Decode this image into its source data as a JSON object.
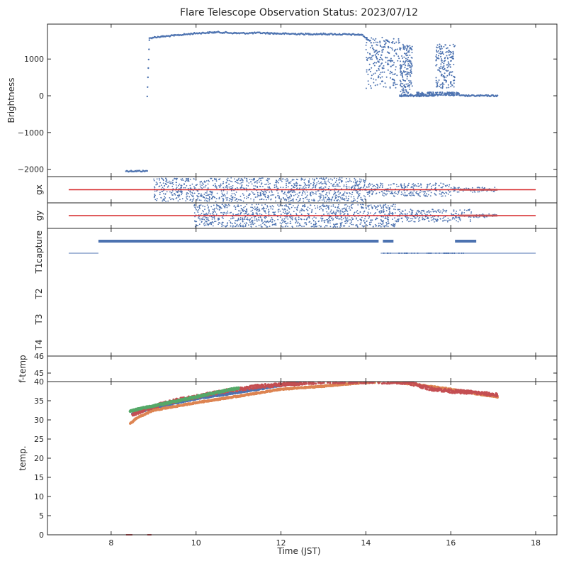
{
  "chart_data": {
    "type": "scatter",
    "title": "Flare Telescope Observation Status: 2023/07/12",
    "xlabel": "Time (JST)",
    "xlim": [
      6.5,
      18.5
    ],
    "xticks": [
      8,
      10,
      12,
      14,
      16,
      18
    ],
    "xtick_labels": [
      "8",
      "10",
      "12",
      "14",
      "16",
      "18"
    ],
    "colors": {
      "blue": "#4c72b0",
      "red": "#d62728",
      "orange": "#dd8452",
      "green": "#55a868",
      "darkred": "#c44e52"
    },
    "panels": [
      {
        "id": "brightness",
        "ylabel": "Brightness",
        "ylim": [
          -2200,
          1950
        ],
        "yticks": [
          -2000,
          -1000,
          0,
          1000
        ],
        "ytick_labels": [
          "−2000",
          "−1000",
          "0",
          "1000"
        ],
        "segments": [
          {
            "x": [
              8.35,
              8.85
            ],
            "y": [
              -2050,
              -2050
            ]
          },
          {
            "x": [
              8.85,
              8.9
            ],
            "y": [
              0,
              1500
            ]
          },
          {
            "x": [
              8.9,
              9.0,
              9.5,
              10.0,
              10.5,
              11.0,
              11.5,
              12.0,
              12.5,
              13.0,
              13.5,
              13.9
            ],
            "y": [
              1560,
              1590,
              1640,
              1700,
              1730,
              1700,
              1710,
              1690,
              1680,
              1680,
              1670,
              1660
            ]
          },
          {
            "x": [
              13.9,
              14.1,
              14.3,
              14.5,
              14.65
            ],
            "y": [
              1660,
              1500,
              900,
              1550,
              300
            ]
          },
          {
            "x": [
              14.8,
              15.6
            ],
            "y": [
              0,
              0
            ]
          },
          {
            "x": [
              16.2,
              17.1
            ],
            "y": [
              0,
              0
            ]
          }
        ],
        "scatter_clusters": [
          {
            "x": [
              14.0,
              14.8
            ],
            "y": [
              200,
              1600
            ]
          },
          {
            "x": [
              14.8,
              15.1
            ],
            "y": [
              0,
              1400
            ]
          },
          {
            "x": [
              15.65,
              16.1
            ],
            "y": [
              200,
              1400
            ]
          },
          {
            "x": [
              15.2,
              16.2
            ],
            "y": [
              0,
              100
            ]
          }
        ]
      },
      {
        "id": "gx",
        "ylabel": "gx",
        "ylim": [
          -1,
          1
        ],
        "ref_line": {
          "x": [
            7.0,
            18.0
          ],
          "y": 0
        },
        "noise": [
          [
            9.0,
            14.0,
            0.9
          ],
          [
            14.0,
            16.0,
            0.5
          ],
          [
            16.0,
            17.1,
            0.2
          ]
        ]
      },
      {
        "id": "gy",
        "ylabel": "gy",
        "ylim": [
          -1,
          1
        ],
        "ref_line": {
          "x": [
            7.0,
            18.0
          ],
          "y": 0
        },
        "noise": [
          [
            9.95,
            14.7,
            0.9
          ],
          [
            14.7,
            16.5,
            0.5
          ],
          [
            16.5,
            17.1,
            0.15
          ]
        ]
      },
      {
        "id": "capture",
        "ylabels": [
          "capture",
          "T1",
          "T2",
          "T3",
          "T4"
        ],
        "bars": [
          {
            "x": [
              7.7,
              14.3
            ],
            "level": "capture"
          },
          {
            "x": [
              14.4,
              14.65
            ],
            "level": "capture"
          },
          {
            "x": [
              16.1,
              16.6
            ],
            "level": "capture"
          },
          {
            "x": [
              7.0,
              7.7
            ],
            "level": "T1"
          },
          {
            "x": [
              14.35,
              18.0
            ],
            "level": "T1"
          }
        ]
      },
      {
        "id": "ftemp",
        "ylabel": "f-temp",
        "ylim": [
          44.5,
          46
        ],
        "yticks": [
          45,
          46
        ],
        "ytick_labels": [
          "45",
          "46"
        ]
      },
      {
        "id": "temp",
        "ylabel": "temp.",
        "ylim": [
          0,
          40
        ],
        "yticks": [
          0,
          5,
          10,
          15,
          20,
          25,
          30,
          35,
          40
        ],
        "ytick_labels": [
          "0",
          "5",
          "10",
          "15",
          "20",
          "25",
          "30",
          "35",
          "40"
        ],
        "series": [
          {
            "name": "blue",
            "x": [
              8.5,
              9.0,
              10.0,
              11.0,
              12.0,
              12.5
            ],
            "y": [
              31.5,
              33.2,
              35.5,
              37.2,
              39.0,
              40.0
            ]
          },
          {
            "name": "orange",
            "x": [
              8.45,
              8.6,
              9.0,
              10.0,
              11.0,
              12.0,
              13.0,
              14.0,
              14.5,
              15.0,
              16.0,
              16.5,
              17.1
            ],
            "y": [
              29.0,
              30.5,
              32.5,
              34.5,
              36.2,
              38.0,
              38.8,
              39.8,
              40.0,
              39.5,
              38.0,
              37.0,
              36.0
            ]
          },
          {
            "name": "red",
            "x": [
              8.5,
              9.0,
              9.5,
              10.0,
              10.5,
              11.0,
              11.5,
              12.0,
              13.0,
              14.0,
              15.0,
              15.5,
              16.0,
              16.5,
              17.1
            ],
            "y": [
              31.5,
              33.5,
              35.0,
              36.0,
              37.2,
              38.0,
              38.8,
              39.2,
              40.0,
              40.0,
              39.8,
              38.2,
              37.5,
              37.2,
              36.5
            ]
          },
          {
            "name": "green",
            "x": [
              8.45,
              8.55,
              10.8,
              11.0
            ],
            "y": [
              32.2,
              32.6,
              37.9,
              38.3
            ]
          }
        ]
      }
    ]
  }
}
